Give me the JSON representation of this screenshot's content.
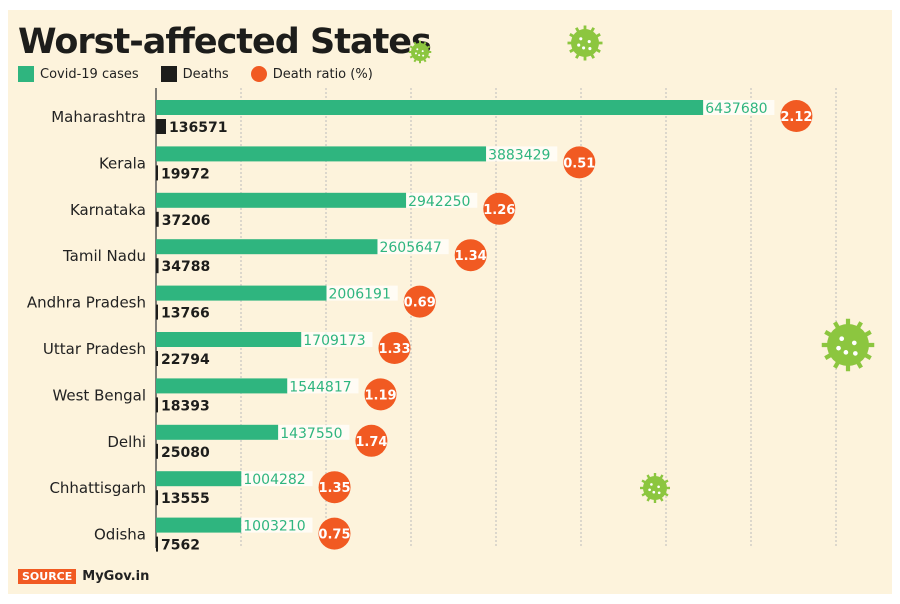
{
  "chart_data": {
    "type": "bar",
    "title": "Worst-affected States",
    "legend": [
      "Covid-19 cases",
      "Deaths",
      "Death ratio (%)"
    ],
    "legend_placement": "top-left",
    "categories": [
      "Maharashtra",
      "Kerala",
      "Karnataka",
      "Tamil Nadu",
      "Andhra Pradesh",
      "Uttar Pradesh",
      "West Bengal",
      "Delhi",
      "Chhattisgarh",
      "Odisha"
    ],
    "series": [
      {
        "name": "Covid-19 cases",
        "values": [
          6437680,
          3883429,
          2942250,
          2605647,
          2006191,
          1709173,
          1544817,
          1437550,
          1004282,
          1003210
        ]
      },
      {
        "name": "Deaths",
        "values": [
          136571,
          19972,
          37206,
          34788,
          13766,
          22794,
          18393,
          25080,
          13555,
          7562
        ]
      },
      {
        "name": "Death ratio (%)",
        "values": [
          2.12,
          0.51,
          1.26,
          1.34,
          0.69,
          1.33,
          1.19,
          1.74,
          1.35,
          0.75
        ]
      }
    ],
    "xlim": [
      0,
      8000000
    ],
    "grid": true,
    "colors": {
      "cases": "#2fb57f",
      "deaths": "#1d1d1b",
      "ratio": "#f15a22",
      "background": "#fdf3dc",
      "virus": "#8cc63f"
    }
  },
  "source": {
    "label": "SOURCE",
    "text": "MyGov.in"
  }
}
